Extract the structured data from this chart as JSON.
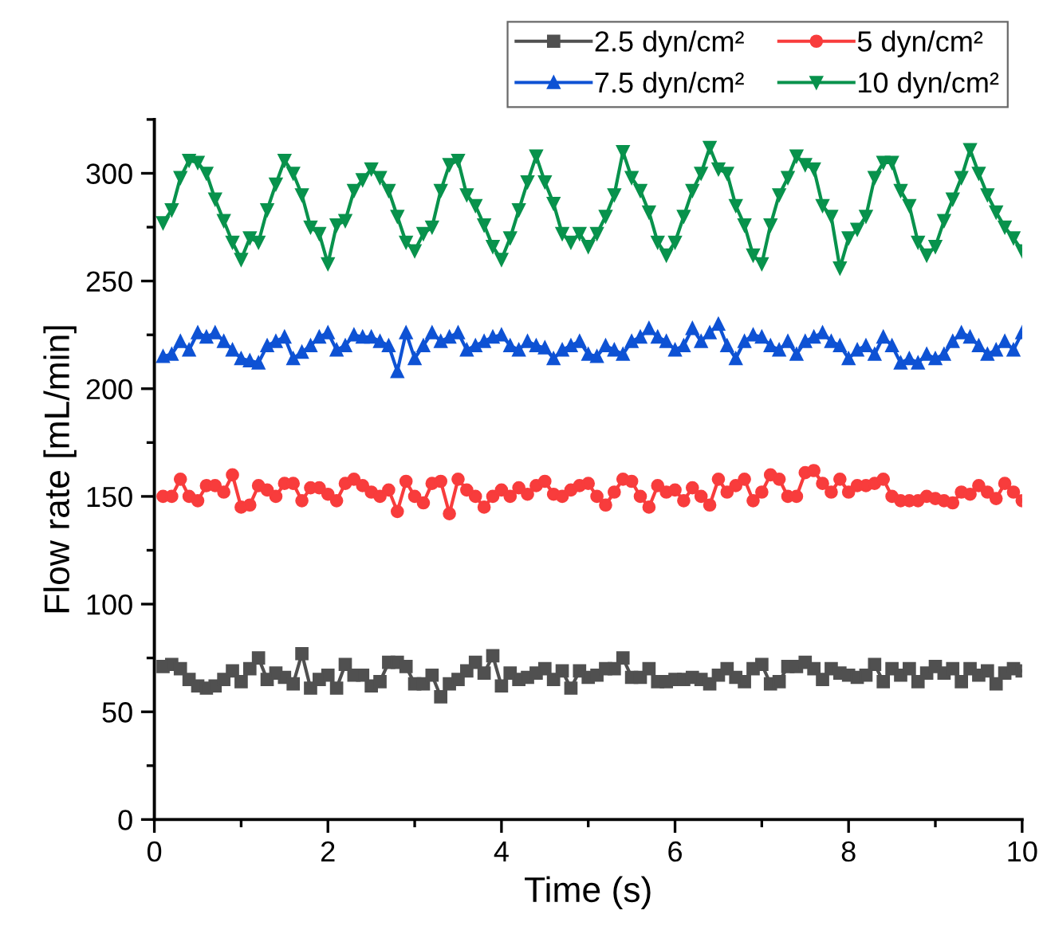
{
  "chart_data": {
    "type": "line",
    "xlabel": "Time (s)",
    "ylabel": "Flow rate [mL/min]",
    "x": [
      0.1,
      0.2,
      0.3,
      0.4,
      0.5,
      0.6,
      0.7,
      0.8,
      0.9,
      1.0,
      1.1,
      1.2,
      1.3,
      1.4,
      1.5,
      1.6,
      1.7,
      1.8,
      1.9,
      2.0,
      2.1,
      2.2,
      2.3,
      2.4,
      2.5,
      2.6,
      2.7,
      2.8,
      2.9,
      3.0,
      3.1,
      3.2,
      3.3,
      3.4,
      3.5,
      3.6,
      3.7,
      3.8,
      3.9,
      4.0,
      4.1,
      4.2,
      4.3,
      4.4,
      4.5,
      4.6,
      4.7,
      4.8,
      4.9,
      5.0,
      5.1,
      5.2,
      5.3,
      5.4,
      5.5,
      5.6,
      5.7,
      5.8,
      5.9,
      6.0,
      6.1,
      6.2,
      6.3,
      6.4,
      6.5,
      6.6,
      6.7,
      6.8,
      6.9,
      7.0,
      7.1,
      7.2,
      7.3,
      7.4,
      7.5,
      7.6,
      7.7,
      7.8,
      7.9,
      8.0,
      8.1,
      8.2,
      8.3,
      8.4,
      8.5,
      8.6,
      8.7,
      8.8,
      8.9,
      9.0,
      9.1,
      9.2,
      9.3,
      9.4,
      9.5,
      9.6,
      9.7,
      9.8,
      9.9,
      10.0
    ],
    "series": [
      {
        "name": "2.5 dyn/cm²",
        "color": "#505050",
        "marker": "square",
        "values": [
          71,
          72,
          70,
          65,
          62,
          61,
          62,
          65,
          69,
          64,
          70,
          75,
          65,
          68,
          66,
          63,
          77,
          61,
          65,
          67,
          61,
          72,
          67,
          67,
          62,
          64,
          73,
          73,
          71,
          63,
          63,
          67,
          57,
          63,
          65,
          69,
          73,
          68,
          76,
          62,
          68,
          65,
          66,
          68,
          70,
          65,
          69,
          61,
          69,
          66,
          67,
          70,
          70,
          75,
          66,
          66,
          70,
          64,
          64,
          65,
          65,
          66,
          65,
          63,
          67,
          70,
          66,
          64,
          70,
          72,
          63,
          64,
          71,
          71,
          73,
          70,
          65,
          70,
          68,
          67,
          66,
          67,
          72,
          64,
          70,
          67,
          70,
          64,
          68,
          71,
          68,
          70,
          64,
          70,
          67,
          69,
          63,
          68,
          70,
          69
        ]
      },
      {
        "name": "5 dyn/cm²",
        "color": "#f83c3c",
        "marker": "circle",
        "values": [
          150,
          150,
          158,
          150,
          148,
          155,
          155,
          152,
          160,
          145,
          146,
          155,
          153,
          150,
          156,
          156,
          148,
          154,
          154,
          151,
          148,
          156,
          158,
          155,
          152,
          150,
          153,
          143,
          157,
          150,
          147,
          156,
          157,
          142,
          158,
          153,
          150,
          145,
          150,
          153,
          150,
          154,
          151,
          155,
          157,
          151,
          150,
          153,
          155,
          156,
          150,
          146,
          152,
          158,
          157,
          150,
          145,
          155,
          152,
          153,
          148,
          154,
          150,
          146,
          158,
          152,
          155,
          158,
          148,
          152,
          160,
          158,
          150,
          150,
          161,
          162,
          156,
          152,
          158,
          152,
          155,
          155,
          156,
          158,
          150,
          148,
          148,
          148,
          150,
          149,
          148,
          147,
          152,
          151,
          155,
          152,
          149,
          156,
          152,
          148
        ]
      },
      {
        "name": "7.5 dyn/cm²",
        "color": "#0e52d4",
        "marker": "triangle",
        "values": [
          215,
          216,
          222,
          218,
          226,
          224,
          226,
          222,
          218,
          214,
          213,
          212,
          220,
          222,
          224,
          214,
          217,
          220,
          224,
          226,
          218,
          220,
          225,
          224,
          224,
          222,
          220,
          208,
          226,
          214,
          220,
          226,
          222,
          224,
          226,
          218,
          220,
          222,
          224,
          225,
          220,
          218,
          222,
          220,
          219,
          214,
          218,
          220,
          222,
          216,
          215,
          220,
          218,
          216,
          222,
          224,
          228,
          224,
          222,
          218,
          220,
          228,
          222,
          226,
          230,
          220,
          214,
          222,
          225,
          224,
          220,
          218,
          222,
          216,
          222,
          224,
          226,
          222,
          220,
          214,
          218,
          220,
          216,
          224,
          220,
          212,
          214,
          212,
          216,
          214,
          216,
          222,
          226,
          224,
          220,
          216,
          218,
          222,
          218,
          226
        ]
      },
      {
        "name": "10 dyn/cm²",
        "color": "#08924c",
        "marker": "triangle-down",
        "values": [
          277,
          283,
          298,
          306,
          305,
          300,
          288,
          278,
          268,
          260,
          270,
          268,
          283,
          295,
          306,
          300,
          290,
          275,
          272,
          258,
          276,
          278,
          292,
          297,
          302,
          298,
          292,
          280,
          268,
          264,
          272,
          275,
          292,
          304,
          306,
          290,
          285,
          276,
          266,
          260,
          270,
          283,
          296,
          308,
          296,
          286,
          272,
          268,
          272,
          266,
          272,
          280,
          290,
          310,
          298,
          292,
          282,
          268,
          262,
          268,
          280,
          292,
          300,
          312,
          302,
          300,
          285,
          276,
          262,
          258,
          276,
          290,
          298,
          308,
          304,
          302,
          285,
          280,
          256,
          270,
          274,
          280,
          298,
          305,
          305,
          292,
          285,
          268,
          262,
          266,
          278,
          288,
          298,
          311,
          300,
          290,
          282,
          275,
          270,
          264
        ]
      }
    ],
    "xlim": [
      0,
      10
    ],
    "xticks": [
      0,
      2,
      4,
      6,
      8,
      10
    ],
    "ylim": [
      0,
      325
    ],
    "yticks": [
      0,
      50,
      100,
      150,
      200,
      250,
      300
    ],
    "legend": "top right",
    "line_style": "solid",
    "grid": false
  }
}
